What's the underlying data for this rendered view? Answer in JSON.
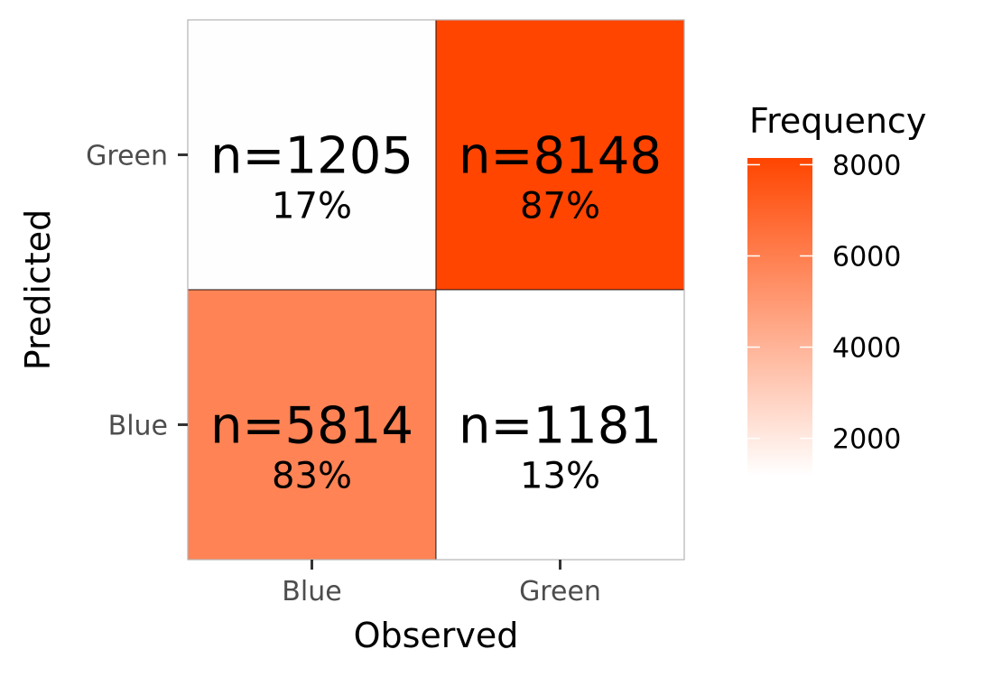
{
  "chart_data": {
    "type": "heatmap",
    "title": "",
    "xlabel": "Observed",
    "ylabel": "Predicted",
    "x_categories": [
      "Blue",
      "Green"
    ],
    "y_categories": [
      "Blue",
      "Green"
    ],
    "cells": [
      {
        "observed": "Blue",
        "predicted": "Green",
        "n": 1205,
        "n_label": "n=1205",
        "percent_label": "17%"
      },
      {
        "observed": "Green",
        "predicted": "Green",
        "n": 8148,
        "n_label": "n=8148",
        "percent_label": "87%"
      },
      {
        "observed": "Blue",
        "predicted": "Blue",
        "n": 5814,
        "n_label": "n=5814",
        "percent_label": "83%"
      },
      {
        "observed": "Green",
        "predicted": "Blue",
        "n": 1181,
        "n_label": "n=1181",
        "percent_label": "13%"
      }
    ],
    "color_scale": {
      "title": "Frequency",
      "low_color": "#ffffff",
      "high_color": "#ff4500",
      "min": 1181,
      "max": 8148,
      "ticks": [
        2000,
        4000,
        6000,
        8000
      ],
      "tick_labels": [
        "2000",
        "4000",
        "6000",
        "8000"
      ]
    },
    "legend_position": "right",
    "grid": false
  }
}
